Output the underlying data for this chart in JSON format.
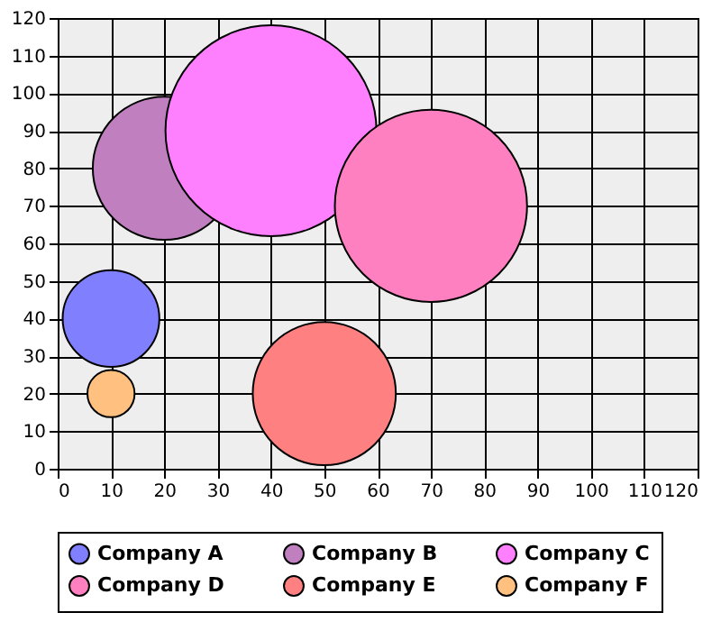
{
  "chart_data": {
    "type": "bubble",
    "xlim": [
      0,
      120
    ],
    "ylim": [
      0,
      120
    ],
    "xticks": [
      0,
      10,
      20,
      30,
      40,
      50,
      60,
      70,
      80,
      90,
      100,
      110,
      120
    ],
    "yticks": [
      0,
      10,
      20,
      30,
      40,
      50,
      60,
      70,
      80,
      90,
      100,
      110,
      120
    ],
    "grid": true,
    "legend": "bottom",
    "series": [
      {
        "name": "Company A",
        "color": "#8080ff",
        "x": [
          10
        ],
        "values": [
          40
        ],
        "sizes": [
          0.21
        ]
      },
      {
        "name": "Company B",
        "color": "#c080c0",
        "x": [
          20
        ],
        "values": [
          80
        ],
        "sizes": [
          0.46
        ]
      },
      {
        "name": "Company C",
        "color": "#ff80ff",
        "x": [
          40
        ],
        "values": [
          90
        ],
        "sizes": [
          1
        ]
      },
      {
        "name": "Company D",
        "color": "#ff80c0",
        "x": [
          70
        ],
        "values": [
          70
        ],
        "sizes": [
          0.83
        ]
      },
      {
        "name": "Company E",
        "color": "#ff8080",
        "x": [
          50
        ],
        "values": [
          20
        ],
        "sizes": [
          0.46
        ]
      },
      {
        "name": "Company F",
        "color": "#ffc080",
        "x": [
          10
        ],
        "values": [
          20
        ],
        "sizes": [
          0.05
        ]
      }
    ]
  }
}
